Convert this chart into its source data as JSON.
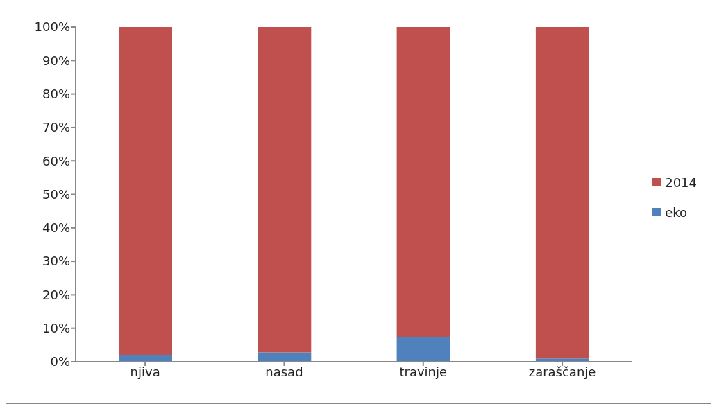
{
  "chart_data": {
    "type": "bar",
    "stacked": true,
    "categories": [
      "njiva",
      "nasad",
      "travinje",
      "zaraščanje"
    ],
    "series": [
      {
        "name": "eko",
        "color": "#4f81bd",
        "values": [
          2.0,
          2.8,
          7.3,
          1.0
        ]
      },
      {
        "name": "2014",
        "color": "#c0504d",
        "values": [
          98.0,
          97.2,
          92.7,
          99.0
        ]
      }
    ],
    "ylim": [
      0,
      100
    ],
    "yticks": [
      {
        "value": 0,
        "label": "0%"
      },
      {
        "value": 10,
        "label": "10%"
      },
      {
        "value": 20,
        "label": "20%"
      },
      {
        "value": 30,
        "label": "30%"
      },
      {
        "value": 40,
        "label": "40%"
      },
      {
        "value": 50,
        "label": "50%"
      },
      {
        "value": 60,
        "label": "60%"
      },
      {
        "value": 70,
        "label": "70%"
      },
      {
        "value": 80,
        "label": "80%"
      },
      {
        "value": 90,
        "label": "90%"
      },
      {
        "value": 100,
        "label": "100%"
      }
    ],
    "grid": false,
    "legend": "right"
  }
}
